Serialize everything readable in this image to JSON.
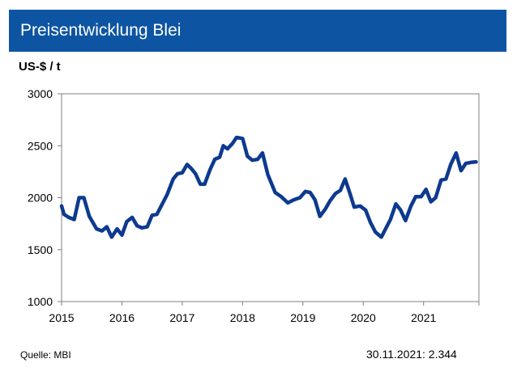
{
  "header": {
    "title": "Preisentwicklung Blei"
  },
  "footer": {
    "source": "Quelle: MBI",
    "latest": "30.11.2021: 2.344"
  },
  "chart_data": {
    "type": "line",
    "title": "Preisentwicklung Blei",
    "ylabel": "US-$ / t",
    "xlabel": "",
    "xlim": [
      2015.0,
      2021.917
    ],
    "ylim": [
      1000,
      3000
    ],
    "y_ticks": [
      1000,
      1500,
      2000,
      2500,
      3000
    ],
    "x_ticks": [
      2015,
      2016,
      2017,
      2018,
      2019,
      2020,
      2021
    ],
    "x_tick_labels": [
      "2015",
      "2016",
      "2017",
      "2018",
      "2019",
      "2020",
      "2021"
    ],
    "grid": false,
    "legend": "none",
    "line_color": "#0d3a8f",
    "series": [
      {
        "x": [
          2015.0,
          2015.04,
          2015.12,
          2015.21,
          2015.29,
          2015.37,
          2015.46,
          2015.58,
          2015.67,
          2015.75,
          2015.83,
          2015.92,
          2016.0,
          2016.08,
          2016.17,
          2016.25,
          2016.33,
          2016.42,
          2016.5,
          2016.58,
          2016.67,
          2016.75,
          2016.85,
          2016.92,
          2017.0,
          2017.08,
          2017.15,
          2017.22,
          2017.3,
          2017.37,
          2017.46,
          2017.54,
          2017.62,
          2017.68,
          2017.75,
          2017.83,
          2017.9,
          2018.0,
          2018.08,
          2018.16,
          2018.25,
          2018.33,
          2018.42,
          2018.54,
          2018.64,
          2018.75,
          2018.85,
          2018.95,
          2019.04,
          2019.12,
          2019.2,
          2019.28,
          2019.37,
          2019.45,
          2019.54,
          2019.62,
          2019.7,
          2019.78,
          2019.85,
          2019.95,
          2020.04,
          2020.12,
          2020.2,
          2020.3,
          2020.37,
          2020.45,
          2020.54,
          2020.62,
          2020.7,
          2020.79,
          2020.87,
          2020.96,
          2021.04,
          2021.12,
          2021.2,
          2021.29,
          2021.37,
          2021.45,
          2021.54,
          2021.62,
          2021.7,
          2021.79,
          2021.87
        ],
        "y": [
          1920,
          1840,
          1810,
          1790,
          2000,
          2000,
          1820,
          1700,
          1680,
          1720,
          1620,
          1700,
          1640,
          1770,
          1810,
          1730,
          1710,
          1720,
          1830,
          1840,
          1940,
          2030,
          2180,
          2230,
          2240,
          2320,
          2280,
          2230,
          2130,
          2130,
          2270,
          2370,
          2390,
          2500,
          2470,
          2520,
          2580,
          2570,
          2400,
          2360,
          2370,
          2430,
          2220,
          2050,
          2010,
          1950,
          1980,
          2000,
          2060,
          2050,
          1980,
          1820,
          1890,
          1970,
          2040,
          2070,
          2180,
          2040,
          1910,
          1920,
          1880,
          1760,
          1670,
          1620,
          1700,
          1790,
          1940,
          1880,
          1780,
          1920,
          2010,
          2010,
          2080,
          1960,
          2000,
          2170,
          2180,
          2320,
          2430,
          2260,
          2330,
          2340,
          2344
        ]
      }
    ]
  }
}
